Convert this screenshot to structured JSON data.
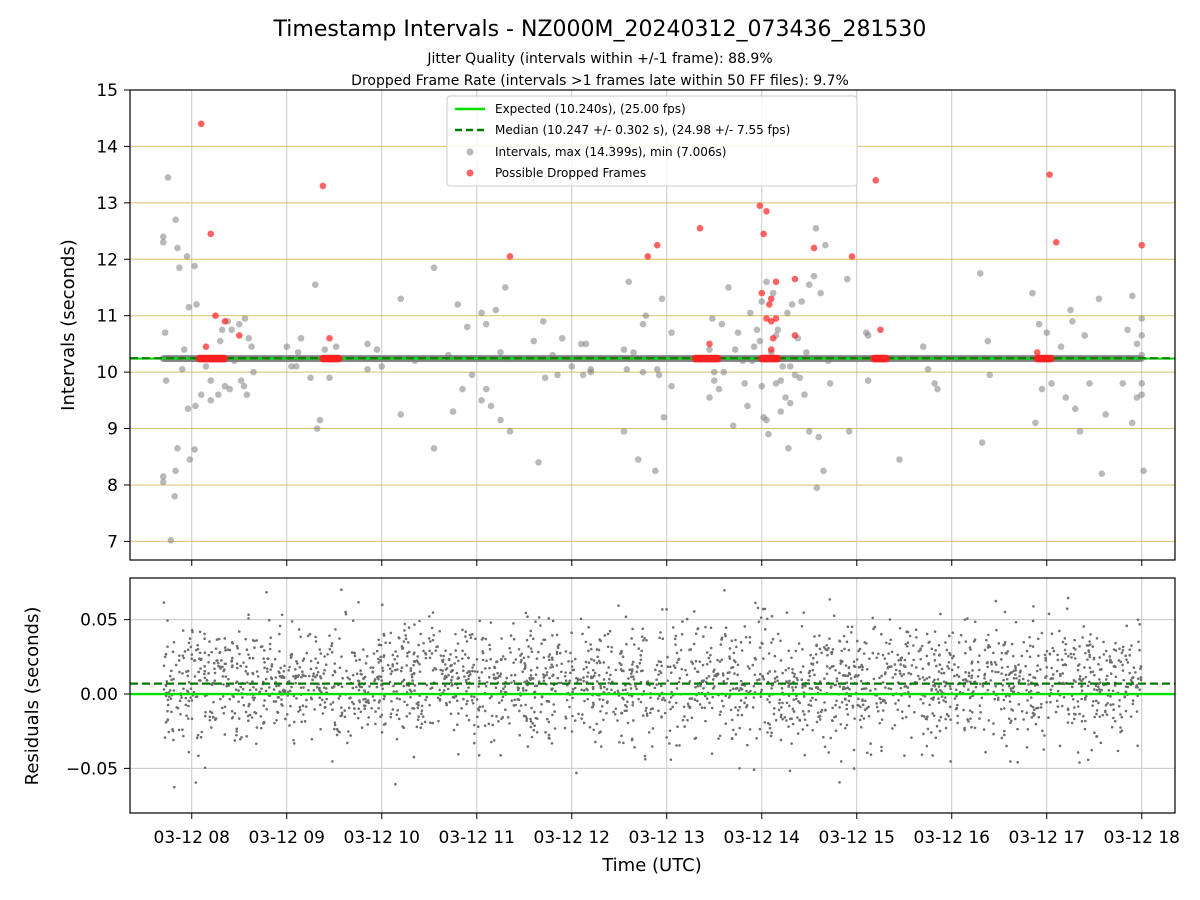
{
  "figure": {
    "title": "Timestamp Intervals - NZ000M_20240312_073436_281530",
    "subtitle_1": "Jitter Quality (intervals within +/-1 frame): 88.9%",
    "subtitle_2": "Dropped Frame Rate (intervals >1 frames late within 50 FF files): 9.7%",
    "xlabel": "Time (UTC)"
  },
  "colors": {
    "expected": "#00e000",
    "median": "#007a00",
    "interval_point": "#808080",
    "dropped_point": "#ff2020",
    "hgrid_top": "#d9bf6a",
    "grid": "#c8c8c8",
    "residual_point": "#6e6e6e"
  },
  "legend": {
    "expected": "Expected (10.240s), (25.00 fps)",
    "median": "Median (10.247 +/- 0.302 s), (24.98 +/- 7.55 fps)",
    "intervals": "Intervals, max (14.399s), min (7.006s)",
    "dropped": "Possible Dropped Frames"
  },
  "chart_data": [
    {
      "type": "scatter",
      "ylabel": "Intervals (seconds)",
      "ylim": [
        6.67,
        15.0
      ],
      "xlim": [
        7.35,
        18.35
      ],
      "x_unit": "hours UTC on 03-12",
      "yticks": [
        "7",
        "8",
        "9",
        "10",
        "11",
        "12",
        "13",
        "14",
        "15"
      ],
      "grid": "on",
      "legend_position": "top-center",
      "expected_line": 10.24,
      "median_line": 10.247,
      "baseline_run": {
        "from": 7.7,
        "to": 18.0,
        "value": 10.24
      },
      "series": [
        {
          "name": "Intervals, max (14.399s), min (7.006s)",
          "points": [
            [
              7.7,
              12.4
            ],
            [
              7.7,
              12.3
            ],
            [
              7.7,
              8.15
            ],
            [
              7.7,
              8.05
            ],
            [
              7.75,
              13.45
            ],
            [
              7.72,
              10.7
            ],
            [
              7.73,
              9.85
            ],
            [
              7.78,
              7.02
            ],
            [
              7.83,
              12.7
            ],
            [
              7.85,
              12.2
            ],
            [
              7.87,
              11.85
            ],
            [
              7.85,
              8.65
            ],
            [
              7.83,
              8.25
            ],
            [
              7.82,
              7.8
            ],
            [
              7.9,
              10.05
            ],
            [
              7.92,
              10.4
            ],
            [
              7.95,
              12.05
            ],
            [
              7.97,
              11.15
            ],
            [
              7.96,
              9.35
            ],
            [
              7.98,
              8.45
            ],
            [
              8.03,
              11.88
            ],
            [
              8.05,
              11.2
            ],
            [
              8.04,
              9.4
            ],
            [
              8.03,
              8.63
            ],
            [
              8.1,
              9.6
            ],
            [
              8.15,
              10.1
            ],
            [
              8.2,
              9.5
            ],
            [
              8.2,
              9.85
            ],
            [
              8.28,
              9.6
            ],
            [
              8.3,
              10.55
            ],
            [
              8.32,
              10.75
            ],
            [
              8.35,
              9.75
            ],
            [
              8.38,
              10.9
            ],
            [
              8.4,
              9.7
            ],
            [
              8.42,
              10.75
            ],
            [
              8.45,
              10.2
            ],
            [
              8.5,
              10.85
            ],
            [
              8.52,
              9.85
            ],
            [
              8.55,
              9.75
            ],
            [
              8.56,
              10.95
            ],
            [
              8.58,
              9.6
            ],
            [
              8.6,
              10.6
            ],
            [
              8.63,
              10.45
            ],
            [
              8.65,
              10.0
            ],
            [
              9.0,
              10.45
            ],
            [
              9.05,
              10.1
            ],
            [
              9.1,
              10.1
            ],
            [
              9.12,
              10.35
            ],
            [
              9.15,
              10.6
            ],
            [
              9.25,
              9.9
            ],
            [
              9.3,
              11.55
            ],
            [
              9.32,
              9.0
            ],
            [
              9.35,
              9.15
            ],
            [
              9.4,
              10.4
            ],
            [
              9.45,
              9.9
            ],
            [
              9.52,
              10.45
            ],
            [
              9.85,
              10.05
            ],
            [
              9.85,
              10.5
            ],
            [
              9.95,
              10.4
            ],
            [
              10.0,
              10.1
            ],
            [
              10.2,
              11.3
            ],
            [
              10.2,
              9.25
            ],
            [
              10.35,
              10.2
            ],
            [
              10.55,
              11.85
            ],
            [
              10.55,
              8.65
            ],
            [
              10.7,
              10.3
            ],
            [
              10.75,
              9.3
            ],
            [
              10.8,
              11.2
            ],
            [
              10.85,
              9.7
            ],
            [
              10.9,
              10.8
            ],
            [
              10.95,
              9.95
            ],
            [
              11.05,
              11.05
            ],
            [
              11.05,
              9.5
            ],
            [
              11.1,
              10.85
            ],
            [
              11.1,
              9.7
            ],
            [
              11.15,
              9.4
            ],
            [
              11.2,
              11.1
            ],
            [
              11.25,
              10.35
            ],
            [
              11.25,
              9.15
            ],
            [
              11.3,
              11.5
            ],
            [
              11.35,
              8.95
            ],
            [
              11.6,
              10.55
            ],
            [
              11.65,
              8.4
            ],
            [
              11.7,
              10.9
            ],
            [
              11.72,
              9.9
            ],
            [
              11.8,
              10.3
            ],
            [
              11.85,
              9.95
            ],
            [
              11.9,
              10.6
            ],
            [
              12.0,
              10.1
            ],
            [
              12.1,
              10.5
            ],
            [
              12.12,
              9.95
            ],
            [
              12.15,
              10.5
            ],
            [
              12.2,
              10.05
            ],
            [
              12.2,
              10.0
            ],
            [
              12.55,
              10.4
            ],
            [
              12.55,
              8.95
            ],
            [
              12.58,
              10.05
            ],
            [
              12.6,
              11.6
            ],
            [
              12.65,
              10.35
            ],
            [
              12.7,
              8.45
            ],
            [
              12.75,
              10.85
            ],
            [
              12.75,
              10.0
            ],
            [
              12.78,
              11.0
            ],
            [
              12.85,
              10.25
            ],
            [
              12.88,
              8.25
            ],
            [
              12.9,
              10.05
            ],
            [
              12.92,
              9.95
            ],
            [
              12.95,
              11.3
            ],
            [
              12.97,
              9.2
            ],
            [
              13.05,
              10.7
            ],
            [
              13.05,
              9.75
            ],
            [
              13.45,
              10.4
            ],
            [
              13.45,
              9.55
            ],
            [
              13.48,
              10.95
            ],
            [
              13.5,
              9.85
            ],
            [
              13.5,
              10.0
            ],
            [
              13.55,
              9.7
            ],
            [
              13.58,
              10.85
            ],
            [
              13.6,
              10.0
            ],
            [
              13.65,
              11.5
            ],
            [
              13.7,
              9.05
            ],
            [
              13.72,
              10.4
            ],
            [
              13.75,
              10.7
            ],
            [
              13.8,
              10.2
            ],
            [
              13.82,
              9.8
            ],
            [
              13.85,
              9.4
            ],
            [
              13.88,
              11.05
            ],
            [
              13.9,
              10.2
            ],
            [
              13.92,
              10.45
            ],
            [
              13.95,
              10.75
            ],
            [
              13.98,
              10.55
            ],
            [
              14.0,
              11.25
            ],
            [
              14.0,
              9.75
            ],
            [
              14.02,
              9.2
            ],
            [
              14.05,
              11.6
            ],
            [
              14.05,
              9.15
            ],
            [
              14.07,
              8.9
            ],
            [
              14.1,
              10.35
            ],
            [
              14.12,
              11.4
            ],
            [
              14.15,
              10.65
            ],
            [
              14.15,
              9.8
            ],
            [
              14.17,
              10.75
            ],
            [
              14.2,
              9.3
            ],
            [
              14.2,
              9.85
            ],
            [
              14.22,
              10.1
            ],
            [
              14.25,
              9.55
            ],
            [
              14.27,
              11.05
            ],
            [
              14.28,
              8.65
            ],
            [
              14.3,
              9.45
            ],
            [
              14.3,
              10.1
            ],
            [
              14.32,
              11.2
            ],
            [
              14.35,
              9.95
            ],
            [
              14.38,
              10.6
            ],
            [
              14.4,
              9.9
            ],
            [
              14.42,
              11.25
            ],
            [
              14.45,
              9.6
            ],
            [
              14.47,
              10.35
            ],
            [
              14.5,
              8.95
            ],
            [
              14.5,
              11.55
            ],
            [
              14.55,
              11.7
            ],
            [
              14.57,
              12.55
            ],
            [
              14.58,
              7.95
            ],
            [
              14.6,
              8.85
            ],
            [
              14.62,
              11.4
            ],
            [
              14.65,
              8.25
            ],
            [
              14.67,
              12.25
            ],
            [
              14.7,
              10.2
            ],
            [
              14.72,
              9.8
            ],
            [
              14.9,
              11.65
            ],
            [
              14.92,
              8.95
            ],
            [
              15.1,
              10.7
            ],
            [
              15.12,
              9.85
            ],
            [
              15.12,
              10.65
            ],
            [
              15.45,
              8.45
            ],
            [
              15.7,
              10.45
            ],
            [
              15.75,
              10.05
            ],
            [
              15.82,
              9.8
            ],
            [
              15.85,
              9.7
            ],
            [
              16.3,
              11.75
            ],
            [
              16.32,
              8.75
            ],
            [
              16.38,
              10.55
            ],
            [
              16.4,
              9.95
            ],
            [
              16.85,
              11.4
            ],
            [
              16.88,
              9.1
            ],
            [
              16.92,
              10.85
            ],
            [
              16.95,
              9.7
            ],
            [
              17.0,
              10.7
            ],
            [
              17.05,
              9.8
            ],
            [
              17.15,
              10.45
            ],
            [
              17.2,
              9.55
            ],
            [
              17.25,
              11.1
            ],
            [
              17.27,
              10.9
            ],
            [
              17.3,
              9.35
            ],
            [
              17.35,
              8.95
            ],
            [
              17.4,
              10.65
            ],
            [
              17.45,
              9.8
            ],
            [
              17.55,
              11.3
            ],
            [
              17.58,
              8.2
            ],
            [
              17.62,
              9.25
            ],
            [
              17.8,
              9.8
            ],
            [
              17.85,
              10.75
            ],
            [
              17.9,
              11.35
            ],
            [
              17.9,
              9.1
            ],
            [
              17.95,
              10.5
            ],
            [
              17.95,
              9.55
            ],
            [
              18.0,
              10.95
            ],
            [
              18.0,
              10.3
            ],
            [
              18.0,
              10.65
            ],
            [
              18.0,
              9.6
            ],
            [
              18.0,
              9.8
            ],
            [
              18.02,
              8.25
            ]
          ]
        },
        {
          "name": "Possible Dropped Frames",
          "points": [
            [
              8.1,
              14.4
            ],
            [
              8.2,
              12.45
            ],
            [
              8.25,
              11.0
            ],
            [
              8.35,
              10.9
            ],
            [
              8.15,
              10.45
            ],
            [
              8.5,
              10.65
            ],
            [
              9.38,
              13.3
            ],
            [
              9.45,
              10.6
            ],
            [
              11.35,
              12.05
            ],
            [
              12.8,
              12.05
            ],
            [
              12.9,
              12.25
            ],
            [
              13.35,
              12.55
            ],
            [
              13.45,
              10.5
            ],
            [
              13.98,
              12.95
            ],
            [
              14.02,
              12.45
            ],
            [
              14.05,
              12.85
            ],
            [
              14.0,
              11.4
            ],
            [
              14.1,
              11.3
            ],
            [
              14.08,
              11.2
            ],
            [
              14.05,
              10.95
            ],
            [
              14.1,
              10.9
            ],
            [
              14.15,
              10.95
            ],
            [
              14.12,
              10.6
            ],
            [
              14.1,
              10.4
            ],
            [
              14.15,
              11.6
            ],
            [
              14.35,
              11.65
            ],
            [
              14.35,
              10.65
            ],
            [
              14.55,
              12.2
            ],
            [
              14.95,
              12.05
            ],
            [
              15.2,
              13.4
            ],
            [
              15.25,
              10.75
            ],
            [
              16.9,
              10.35
            ],
            [
              17.03,
              13.5
            ],
            [
              17.1,
              12.3
            ],
            [
              18.0,
              12.25
            ]
          ]
        },
        {
          "name": "Possible Dropped Frames (baseline clusters)",
          "ranges": [
            [
              8.08,
              8.35,
              10.24
            ],
            [
              9.38,
              9.55,
              10.24
            ],
            [
              13.3,
              13.55,
              10.24
            ],
            [
              14.0,
              14.18,
              10.24
            ],
            [
              15.18,
              15.32,
              10.24
            ],
            [
              16.9,
              17.05,
              10.24
            ]
          ]
        }
      ]
    },
    {
      "type": "scatter",
      "ylabel": "Residuals (seconds)",
      "ylim": [
        -0.08,
        0.078
      ],
      "xlim": [
        7.35,
        18.35
      ],
      "yticks": [
        "0.05",
        "0.00",
        "−0.05"
      ],
      "xticks": [
        "03-12 08",
        "03-12 09",
        "03-12 10",
        "03-12 11",
        "03-12 12",
        "03-12 13",
        "03-12 14",
        "03-12 15",
        "03-12 16",
        "03-12 17",
        "03-12 18"
      ],
      "expected_line": 0.0,
      "median_line": 0.007,
      "series": [
        {
          "name": "Residuals",
          "n": 2600,
          "x_range": [
            7.7,
            18.0
          ],
          "center": 0.007,
          "spread": 0.02
        }
      ]
    }
  ]
}
